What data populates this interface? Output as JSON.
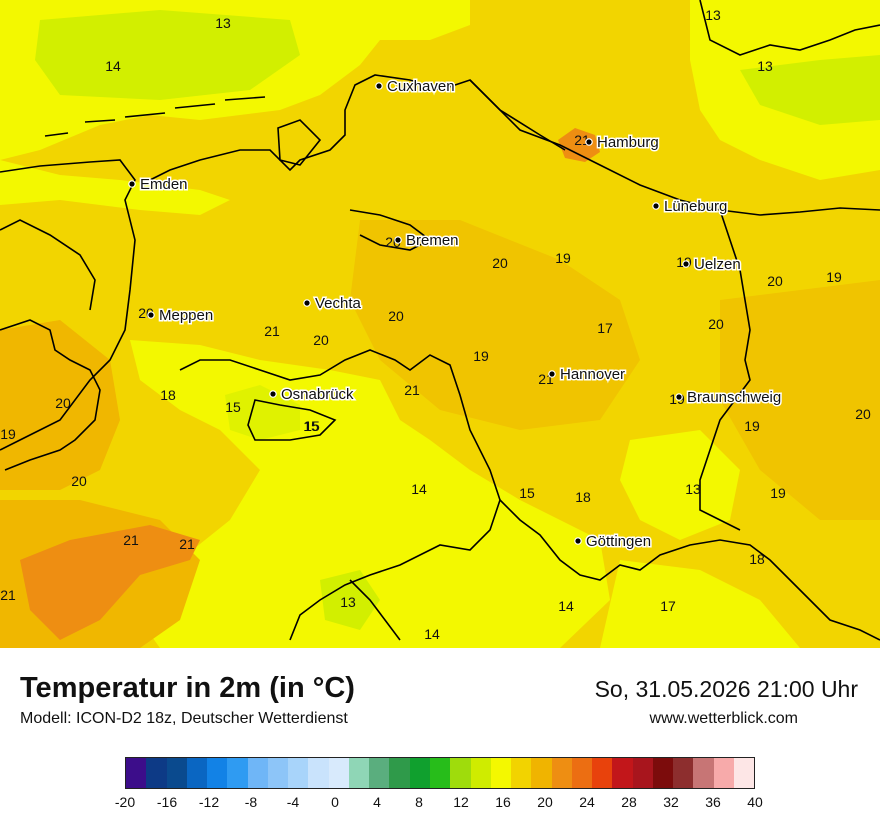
{
  "map": {
    "cities": [
      {
        "name": "Cuxhaven"
      },
      {
        "name": "Hamburg"
      },
      {
        "name": "Emden"
      },
      {
        "name": "Lüneburg"
      },
      {
        "name": "Bremen"
      },
      {
        "name": "Uelzen"
      },
      {
        "name": "Vechta"
      },
      {
        "name": "Meppen"
      },
      {
        "name": "Hannover"
      },
      {
        "name": "Osnabrück"
      },
      {
        "name": "Braunschweig"
      },
      {
        "name": "Göttingen"
      }
    ],
    "values": [
      "13",
      "13",
      "14",
      "13",
      "21",
      "20",
      "20",
      "19",
      "19",
      "20",
      "19",
      "21",
      "20",
      "20",
      "20",
      "17",
      "19",
      "21",
      "18",
      "15",
      "20",
      "21",
      "20",
      "19",
      "19",
      "20",
      "19",
      "15",
      "15",
      "14",
      "13",
      "18",
      "20",
      "19",
      "21",
      "21",
      "18",
      "21",
      "13",
      "14",
      "15",
      "14",
      "17"
    ]
  },
  "footer": {
    "title": "Temperatur in 2m (in °C)",
    "model": "Modell: ICON-D2 18z, Deutscher Wetterdienst",
    "datetime": "So, 31.05.2026 21:00 Uhr",
    "site": "www.wetterblick.com"
  },
  "legend": {
    "colors": [
      "#3c0d8a",
      "#0d3a86",
      "#0a4a8e",
      "#0a66c2",
      "#1282e6",
      "#2f9bf2",
      "#6fb6f7",
      "#8dc5f8",
      "#a8d4fa",
      "#c9e3fc",
      "#d8eafc",
      "#8fd6b6",
      "#5aae7e",
      "#2f9a4a",
      "#10a02e",
      "#27bd1a",
      "#9fdc0c",
      "#cfec00",
      "#f4f800",
      "#f2d300",
      "#f0b400",
      "#ee8e12",
      "#ec6e12",
      "#e8420c",
      "#c2161a",
      "#a8151d",
      "#7c0c0c",
      "#8d2e2e",
      "#c77575",
      "#f7aaaa",
      "#fde6e6"
    ],
    "ticks": [
      "-20",
      "-16",
      "-12",
      "-8",
      "-4",
      "0",
      "4",
      "8",
      "12",
      "16",
      "20",
      "24",
      "28",
      "32",
      "36",
      "40"
    ]
  }
}
